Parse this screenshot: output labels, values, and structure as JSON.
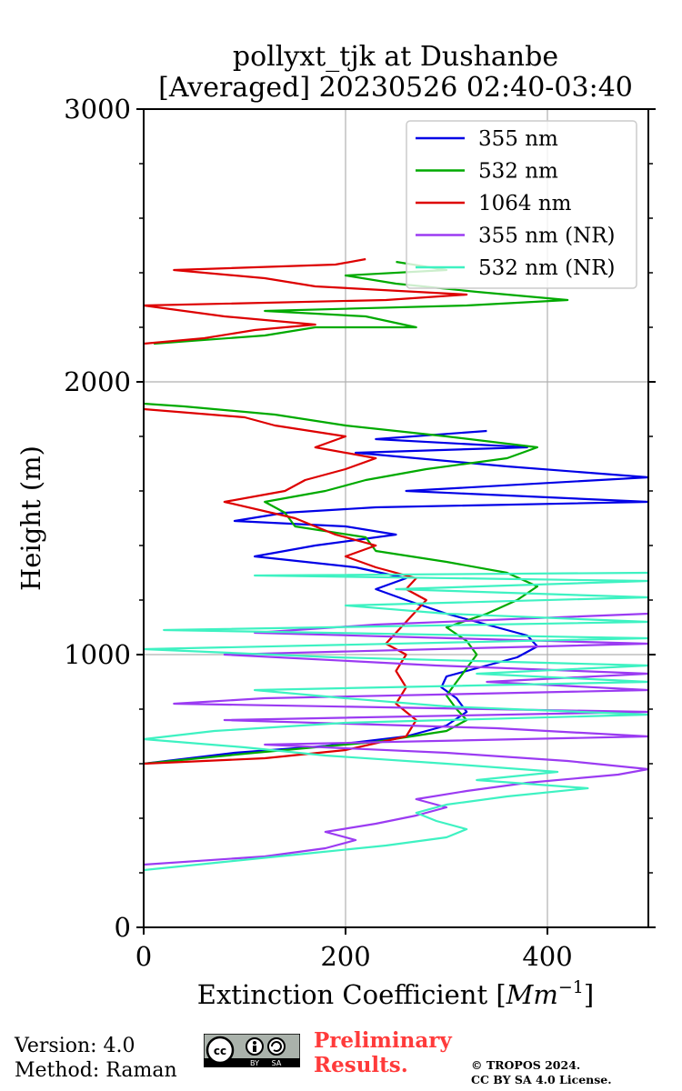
{
  "chart_data": {
    "type": "line",
    "title_line1": "pollyxt_tjk at Dushanbe",
    "title_line2": "[Averaged] 20230526 02:40-03:40",
    "xlabel": "Extinction Coefficient [",
    "xlabel_unit": "Mm",
    "xlabel_exp": "−1",
    "xlabel_end": "]",
    "ylabel": "Height (m)",
    "xlim": [
      0,
      500
    ],
    "ylim": [
      0,
      3000
    ],
    "x_ticks": [
      0,
      200,
      400
    ],
    "x_tick_labels": [
      "0",
      "200",
      "400"
    ],
    "y_ticks": [
      0,
      1000,
      2000,
      3000
    ],
    "y_tick_labels": [
      "0",
      "1000",
      "2000",
      "3000"
    ],
    "grid": true,
    "legend_position": "top-right",
    "series": [
      {
        "name": "355 nm",
        "color": "#0000e6",
        "points": [
          [
            0,
            600
          ],
          [
            90,
            640
          ],
          [
            180,
            665
          ],
          [
            260,
            700
          ],
          [
            300,
            740
          ],
          [
            320,
            790
          ],
          [
            310,
            840
          ],
          [
            295,
            880
          ],
          [
            300,
            920
          ],
          [
            330,
            950
          ],
          [
            370,
            990
          ],
          [
            390,
            1030
          ],
          [
            380,
            1070
          ],
          [
            340,
            1110
          ],
          [
            300,
            1150
          ],
          [
            260,
            1200
          ],
          [
            230,
            1240
          ],
          [
            260,
            1280
          ],
          [
            210,
            1320
          ],
          [
            110,
            1360
          ],
          [
            170,
            1400
          ],
          [
            250,
            1440
          ],
          [
            200,
            1470
          ],
          [
            90,
            1490
          ],
          [
            140,
            1520
          ],
          [
            230,
            1540
          ],
          [
            500,
            1560
          ],
          [
            260,
            1600
          ],
          [
            500,
            1650
          ],
          [
            360,
            1690
          ],
          [
            210,
            1740
          ],
          [
            380,
            1760
          ],
          [
            230,
            1790
          ],
          [
            340,
            1820
          ]
        ]
      },
      {
        "name": "532 nm",
        "color": "#00aa00",
        "points": [
          [
            0,
            600
          ],
          [
            110,
            640
          ],
          [
            230,
            680
          ],
          [
            300,
            720
          ],
          [
            320,
            760
          ],
          [
            310,
            800
          ],
          [
            300,
            850
          ],
          [
            310,
            900
          ],
          [
            320,
            950
          ],
          [
            330,
            1000
          ],
          [
            320,
            1050
          ],
          [
            300,
            1100
          ],
          [
            340,
            1150
          ],
          [
            370,
            1200
          ],
          [
            390,
            1250
          ],
          [
            360,
            1300
          ],
          [
            300,
            1340
          ],
          [
            230,
            1380
          ],
          [
            220,
            1430
          ],
          [
            150,
            1470
          ],
          [
            140,
            1520
          ],
          [
            120,
            1560
          ],
          [
            180,
            1600
          ],
          [
            220,
            1640
          ],
          [
            280,
            1680
          ],
          [
            360,
            1720
          ],
          [
            390,
            1760
          ],
          [
            300,
            1800
          ],
          [
            200,
            1840
          ],
          [
            130,
            1880
          ],
          [
            40,
            1910
          ],
          [
            0,
            1920
          ],
          [
            null,
            null
          ],
          [
            10,
            2140
          ],
          [
            120,
            2170
          ],
          [
            170,
            2200
          ],
          [
            270,
            2200
          ],
          [
            220,
            2240
          ],
          [
            120,
            2260
          ],
          [
            320,
            2280
          ],
          [
            420,
            2300
          ],
          [
            330,
            2330
          ],
          [
            250,
            2360
          ],
          [
            200,
            2390
          ],
          [
            300,
            2410
          ],
          [
            250,
            2440
          ]
        ]
      },
      {
        "name": "1064 nm",
        "color": "#dd0000",
        "points": [
          [
            0,
            600
          ],
          [
            120,
            620
          ],
          [
            200,
            650
          ],
          [
            260,
            700
          ],
          [
            270,
            760
          ],
          [
            250,
            820
          ],
          [
            260,
            880
          ],
          [
            250,
            940
          ],
          [
            260,
            1000
          ],
          [
            240,
            1040
          ],
          [
            250,
            1080
          ],
          [
            260,
            1120
          ],
          [
            270,
            1160
          ],
          [
            280,
            1200
          ],
          [
            260,
            1240
          ],
          [
            270,
            1280
          ],
          [
            230,
            1320
          ],
          [
            200,
            1360
          ],
          [
            230,
            1400
          ],
          [
            190,
            1440
          ],
          [
            150,
            1500
          ],
          [
            80,
            1560
          ],
          [
            140,
            1600
          ],
          [
            160,
            1640
          ],
          [
            200,
            1680
          ],
          [
            230,
            1720
          ],
          [
            170,
            1760
          ],
          [
            200,
            1800
          ],
          [
            130,
            1840
          ],
          [
            100,
            1870
          ],
          [
            0,
            1900
          ],
          [
            null,
            null
          ],
          [
            0,
            2140
          ],
          [
            60,
            2160
          ],
          [
            110,
            2190
          ],
          [
            170,
            2210
          ],
          [
            80,
            2240
          ],
          [
            0,
            2280
          ],
          [
            240,
            2300
          ],
          [
            320,
            2320
          ],
          [
            170,
            2350
          ],
          [
            120,
            2380
          ],
          [
            30,
            2410
          ],
          [
            190,
            2430
          ],
          [
            220,
            2450
          ]
        ]
      },
      {
        "name": "355 nm (NR)",
        "color": "#9b3bf2",
        "points": [
          [
            0,
            230
          ],
          [
            120,
            260
          ],
          [
            180,
            290
          ],
          [
            210,
            320
          ],
          [
            180,
            350
          ],
          [
            230,
            380
          ],
          [
            270,
            410
          ],
          [
            300,
            440
          ],
          [
            270,
            470
          ],
          [
            320,
            500
          ],
          [
            380,
            530
          ],
          [
            470,
            560
          ],
          [
            500,
            580
          ],
          [
            420,
            610
          ],
          [
            300,
            640
          ],
          [
            120,
            670
          ],
          [
            500,
            700
          ],
          [
            350,
            730
          ],
          [
            80,
            760
          ],
          [
            500,
            790
          ],
          [
            30,
            820
          ],
          [
            120,
            840
          ],
          [
            500,
            870
          ],
          [
            340,
            900
          ],
          [
            500,
            930
          ],
          [
            290,
            960
          ],
          [
            80,
            1000
          ],
          [
            500,
            1040
          ],
          [
            110,
            1080
          ],
          [
            230,
            1110
          ],
          [
            500,
            1150
          ]
        ]
      },
      {
        "name": "532 nm (NR)",
        "color": "#3ef2c2",
        "points": [
          [
            0,
            210
          ],
          [
            80,
            240
          ],
          [
            160,
            270
          ],
          [
            240,
            300
          ],
          [
            300,
            330
          ],
          [
            320,
            360
          ],
          [
            290,
            390
          ],
          [
            270,
            420
          ],
          [
            300,
            450
          ],
          [
            360,
            480
          ],
          [
            440,
            510
          ],
          [
            330,
            540
          ],
          [
            410,
            570
          ],
          [
            300,
            600
          ],
          [
            180,
            630
          ],
          [
            100,
            660
          ],
          [
            0,
            690
          ],
          [
            70,
            720
          ],
          [
            200,
            750
          ],
          [
            500,
            780
          ],
          [
            300,
            810
          ],
          [
            200,
            840
          ],
          [
            110,
            870
          ],
          [
            500,
            900
          ],
          [
            330,
            930
          ],
          [
            500,
            960
          ],
          [
            190,
            990
          ],
          [
            0,
            1020
          ],
          [
            500,
            1060
          ],
          [
            20,
            1090
          ],
          [
            500,
            1120
          ],
          [
            300,
            1150
          ],
          [
            200,
            1180
          ],
          [
            500,
            1210
          ],
          [
            250,
            1240
          ],
          [
            500,
            1270
          ],
          [
            110,
            1290
          ],
          [
            500,
            1300
          ]
        ]
      }
    ]
  },
  "footer": {
    "version": "Version: 4.0",
    "method": "Method: Raman",
    "prelim_line1": "Preliminary",
    "prelim_line2": "Results.",
    "copyright_line1": "© TROPOS 2024.",
    "copyright_line2": "CC BY SA 4.0 License.",
    "cc_badge": {
      "cc": "cc",
      "by": "BY",
      "sa": "SA"
    }
  }
}
